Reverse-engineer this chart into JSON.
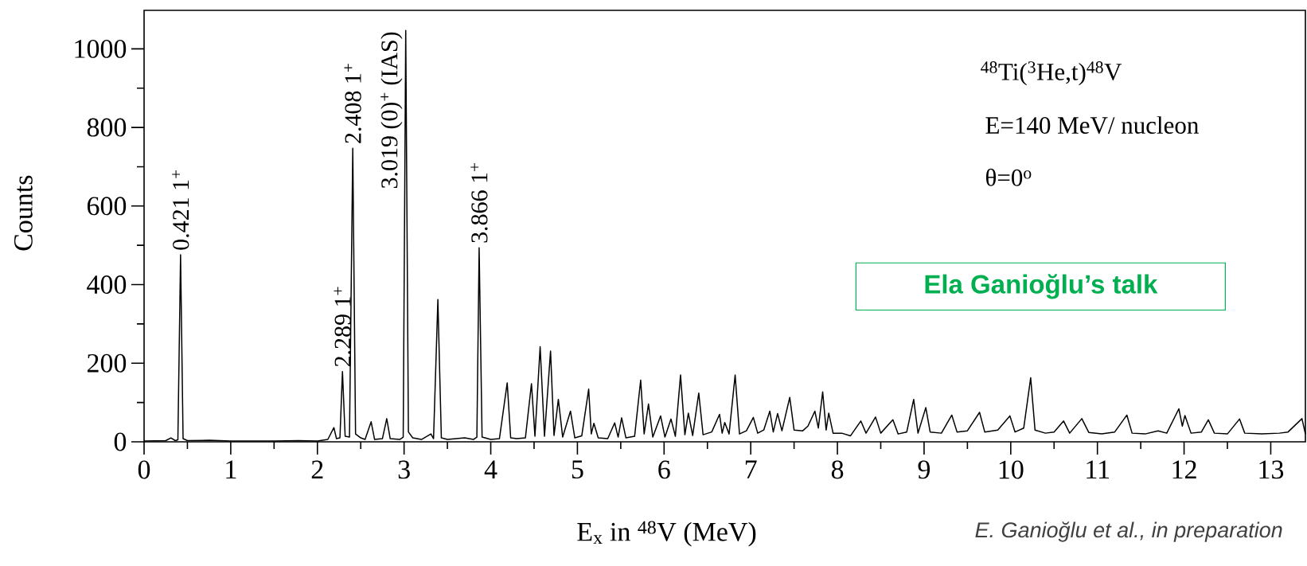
{
  "chart_data": {
    "type": "line",
    "xlabel": "E$_{x}$ in $^{48}$V (MeV)",
    "ylabel": "Counts",
    "xlim": [
      0,
      13.4
    ],
    "ylim": [
      0,
      1098
    ],
    "xticks": [
      0,
      1,
      2,
      3,
      4,
      5,
      6,
      7,
      8,
      9,
      10,
      11,
      12,
      13,
      {
        "value": 0.5,
        "label": null
      },
      {
        "value": 1.5,
        "label": null
      },
      {
        "value": 2.5,
        "label": null
      },
      {
        "value": 3.5,
        "label": null
      },
      {
        "value": 4.5,
        "label": null
      },
      {
        "value": 5.5,
        "label": null
      },
      {
        "value": 6.5,
        "label": null
      },
      {
        "value": 7.5,
        "label": null
      },
      {
        "value": 8.5,
        "label": null
      },
      {
        "value": 9.5,
        "label": null
      },
      {
        "value": 10.5,
        "label": null
      },
      {
        "value": 11.5,
        "label": null
      },
      {
        "value": 12.5,
        "label": null
      }
    ],
    "yticks": [
      0,
      200,
      400,
      600,
      800,
      1000,
      {
        "value": 100,
        "label": null
      },
      {
        "value": 300,
        "label": null
      },
      {
        "value": 500,
        "label": null
      },
      {
        "value": 700,
        "label": null
      },
      {
        "value": 900,
        "label": null
      }
    ],
    "series": [
      {
        "color": "#000000",
        "x": [
          0,
          0.25,
          0.31,
          0.36,
          0.39,
          0.421,
          0.45,
          0.5,
          0.75,
          1.0,
          1.5,
          1.78,
          2.0,
          2.12,
          2.19,
          2.22,
          2.26,
          2.289,
          2.32,
          2.37,
          2.408,
          2.44,
          2.5,
          2.55,
          2.62,
          2.66,
          2.75,
          2.8,
          2.84,
          2.95,
          2.99,
          3.019,
          3.05,
          3.1,
          3.2,
          3.31,
          3.34,
          3.39,
          3.43,
          3.5,
          3.6,
          3.7,
          3.8,
          3.84,
          3.866,
          3.9,
          4.0,
          4.1,
          4.19,
          4.23,
          4.3,
          4.4,
          4.47,
          4.51,
          4.57,
          4.62,
          4.69,
          4.73,
          4.78,
          4.83,
          4.92,
          4.97,
          5.05,
          5.13,
          5.16,
          5.19,
          5.24,
          5.35,
          5.43,
          5.47,
          5.51,
          5.56,
          5.66,
          5.73,
          5.77,
          5.82,
          5.87,
          5.96,
          6.01,
          6.08,
          6.13,
          6.19,
          6.24,
          6.28,
          6.33,
          6.4,
          6.45,
          6.55,
          6.64,
          6.67,
          6.7,
          6.75,
          6.82,
          6.87,
          6.95,
          7.03,
          7.08,
          7.15,
          7.22,
          7.26,
          7.31,
          7.36,
          7.45,
          7.5,
          7.6,
          7.66,
          7.74,
          7.78,
          7.83,
          7.87,
          7.9,
          7.95,
          8.05,
          8.15,
          8.27,
          8.33,
          8.44,
          8.5,
          8.64,
          8.7,
          8.8,
          8.88,
          8.93,
          9.02,
          9.07,
          9.2,
          9.32,
          9.38,
          9.5,
          9.64,
          9.7,
          9.85,
          9.99,
          10.05,
          10.15,
          10.23,
          10.28,
          10.4,
          10.5,
          10.61,
          10.68,
          10.82,
          10.9,
          11.05,
          11.2,
          11.34,
          11.4,
          11.55,
          11.7,
          11.8,
          11.94,
          11.98,
          12.01,
          12.08,
          12.2,
          12.28,
          12.35,
          12.5,
          12.64,
          12.7,
          12.9,
          13.1,
          13.2,
          13.36,
          13.4
        ],
        "values": [
          2,
          3,
          10,
          3,
          5,
          476,
          8,
          3,
          4,
          2,
          2,
          3,
          2,
          6,
          36,
          8,
          10,
          179,
          14,
          12,
          747,
          20,
          10,
          6,
          51,
          6,
          8,
          59,
          8,
          6,
          12,
          1047,
          25,
          10,
          6,
          20,
          8,
          362,
          10,
          6,
          8,
          10,
          6,
          12,
          494,
          12,
          6,
          8,
          150,
          10,
          8,
          10,
          148,
          14,
          242,
          14,
          231,
          16,
          108,
          12,
          78,
          10,
          15,
          134,
          20,
          47,
          10,
          8,
          48,
          12,
          61,
          10,
          14,
          157,
          20,
          96,
          12,
          66,
          12,
          58,
          14,
          170,
          18,
          73,
          16,
          124,
          18,
          25,
          70,
          22,
          49,
          20,
          170,
          20,
          28,
          62,
          22,
          30,
          78,
          25,
          72,
          28,
          113,
          30,
          28,
          40,
          78,
          35,
          127,
          30,
          73,
          22,
          22,
          15,
          53,
          22,
          63,
          22,
          56,
          20,
          25,
          108,
          22,
          87,
          25,
          22,
          68,
          25,
          28,
          75,
          25,
          30,
          66,
          25,
          35,
          163,
          30,
          22,
          25,
          53,
          22,
          59,
          24,
          20,
          25,
          68,
          22,
          20,
          28,
          22,
          84,
          40,
          67,
          22,
          25,
          56,
          22,
          20,
          58,
          22,
          20,
          22,
          25,
          59,
          20
        ]
      }
    ],
    "annotations": [
      {
        "text": "0.421  1$^{+}$",
        "x": 0.421,
        "y": 476
      },
      {
        "text": "2.289  1$^{+}$",
        "x": 2.289,
        "y": 179
      },
      {
        "text": "2.408  1$^{+}$",
        "x": 2.408,
        "y": 747
      },
      {
        "text": "3.019  (0)$^{+}$  (IAS)",
        "x": 3.019,
        "y": 1047
      },
      {
        "text": "3.866  1$^{+}$",
        "x": 3.866,
        "y": 494
      },
      "$^{48}$Ti($^{3}$He,t)$^{48}$V",
      "E=140 MeV/ nucleon",
      "θ=0$^{o}$",
      "Ela Ganioğlu’s talk",
      "E. Ganioğlu et al., in preparation"
    ]
  }
}
